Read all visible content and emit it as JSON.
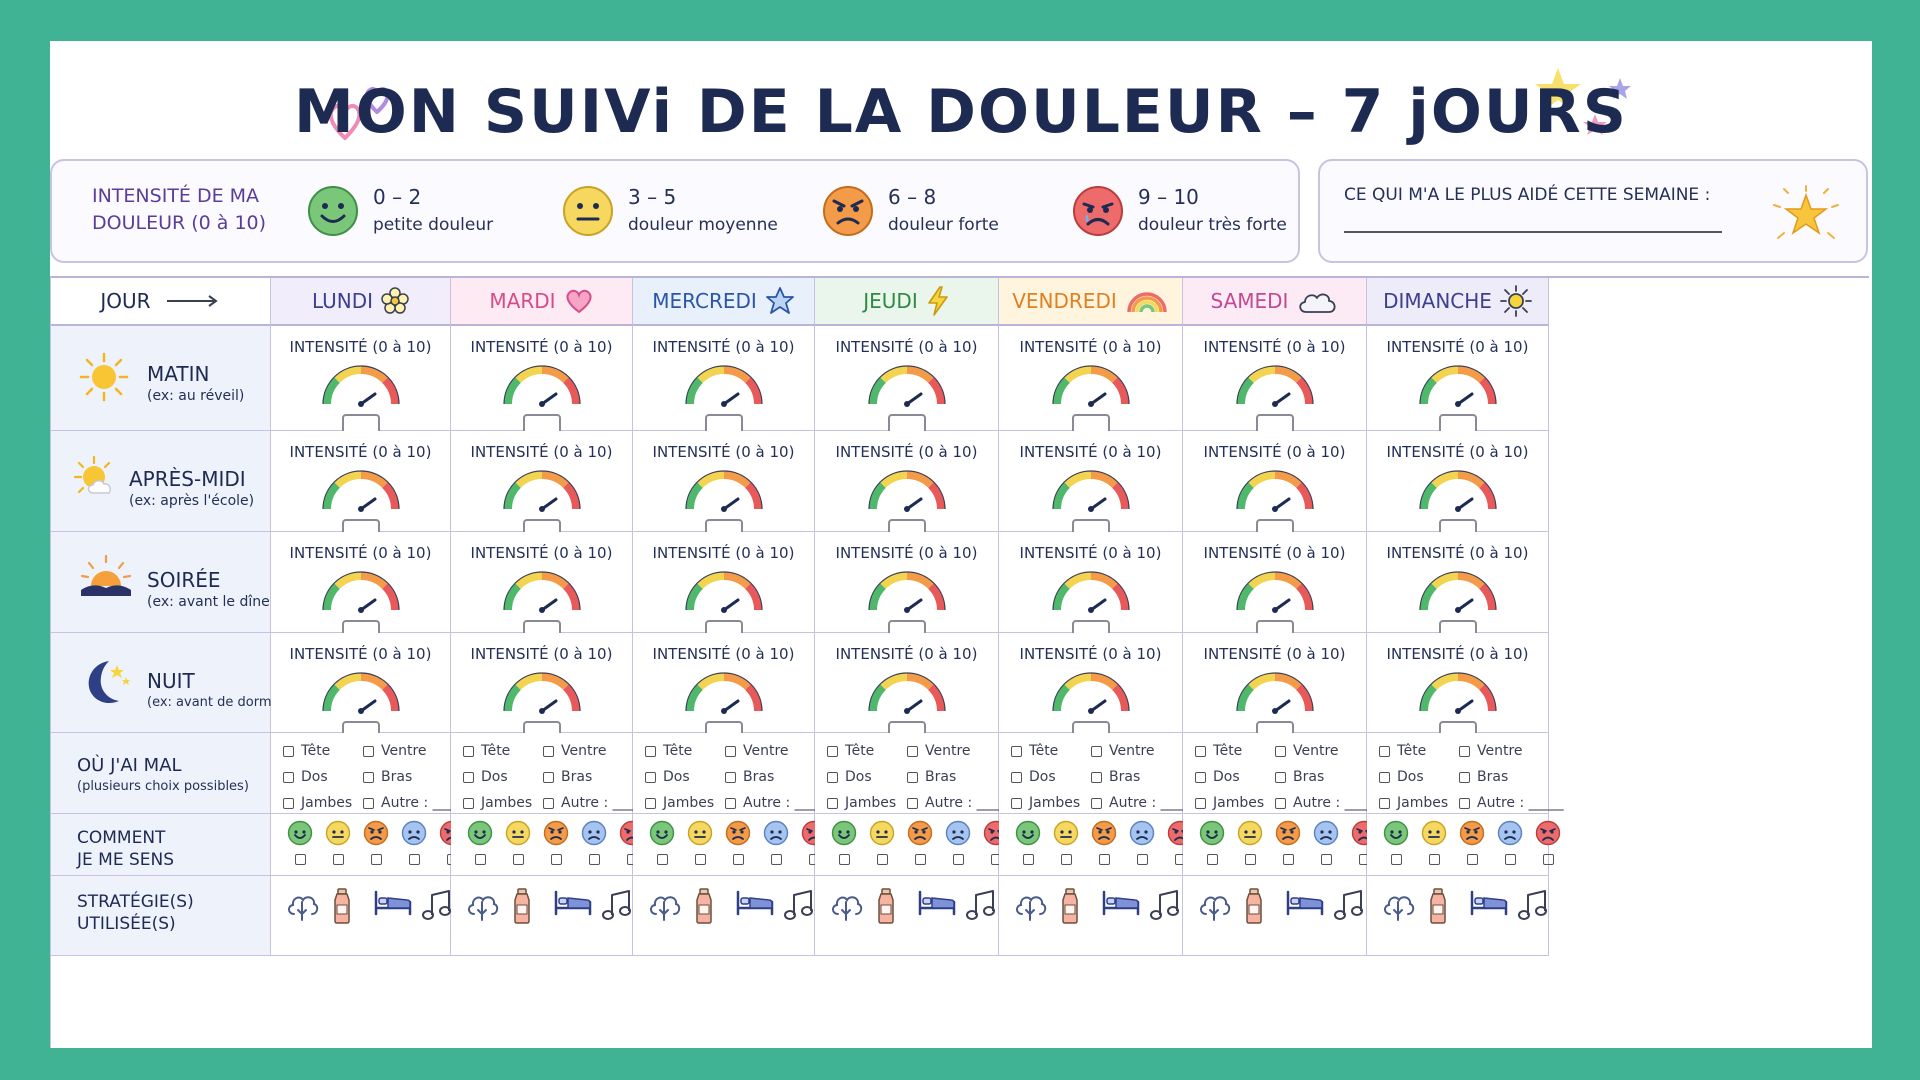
{
  "title": "MON SUIVi DE LA DOULEUR – 7 jOURS",
  "legend": {
    "title": "INTENSITÉ DE MA DOULEUR (0 à 10)",
    "levels": [
      {
        "range": "0 – 2",
        "desc": "petite douleur",
        "color": "#7bc77a"
      },
      {
        "range": "3 – 5",
        "desc": "douleur moyenne",
        "color": "#f6d860"
      },
      {
        "range": "6 – 8",
        "desc": "douleur forte",
        "color": "#f39b48"
      },
      {
        "range": "9 – 10",
        "desc": "douleur très forte",
        "color": "#ee6b6b"
      }
    ]
  },
  "helped": {
    "label": "CE QUI M'A LE PLUS AIDÉ CETTE SEMAINE :"
  },
  "grid": {
    "corner": "JOUR",
    "days": [
      {
        "name": "LUNDI",
        "icon": "flower-icon",
        "color": "#3d3f8f",
        "bg": "#f1edfb"
      },
      {
        "name": "MARDI",
        "icon": "heart-icon",
        "color": "#d64b8a",
        "bg": "#fdeaf3"
      },
      {
        "name": "MERCREDI",
        "icon": "star-icon",
        "color": "#2b55a8",
        "bg": "#e8f0fb"
      },
      {
        "name": "JEUDI",
        "icon": "lightning-icon",
        "color": "#2f8a44",
        "bg": "#eaf6ec"
      },
      {
        "name": "VENDREDI",
        "icon": "rainbow-icon",
        "color": "#e08020",
        "bg": "#fff5df"
      },
      {
        "name": "SAMEDI",
        "icon": "cloud-icon",
        "color": "#c24a92",
        "bg": "#fcebf5"
      },
      {
        "name": "DIMANCHE",
        "icon": "sun-icon",
        "color": "#3d3f8f",
        "bg": "#eeecf8"
      }
    ],
    "periods": [
      {
        "name": "MATIN",
        "sub": "(ex: au réveil)",
        "icon": "sun-icon"
      },
      {
        "name": "APRÈS-MIDI",
        "sub": "(ex: après l'école)",
        "icon": "sun-cloud-icon"
      },
      {
        "name": "SOIRÉE",
        "sub": "(ex: avant le dîner)",
        "icon": "sunset-icon"
      },
      {
        "name": "NUIT",
        "sub": "(ex: avant de dormir)",
        "icon": "moon-icon"
      }
    ],
    "intensity_label": "INTENSITÉ (0 à 10)",
    "where": {
      "name": "OÙ J'AI MAL",
      "sub": "(plusieurs choix possibles)",
      "options": [
        "Tête",
        "Ventre",
        "Dos",
        "Bras",
        "Jambes",
        "Autre : _____"
      ]
    },
    "mood": {
      "name_line1": "COMMENT",
      "name_line2": "JE ME SENS"
    },
    "strategies": {
      "name_line1": "STRATÉGIE(S)",
      "name_line2": "UTILISÉE(S)",
      "icons": [
        "breathing-icon",
        "water-bottle-icon",
        "bed-icon",
        "music-icon"
      ]
    }
  }
}
